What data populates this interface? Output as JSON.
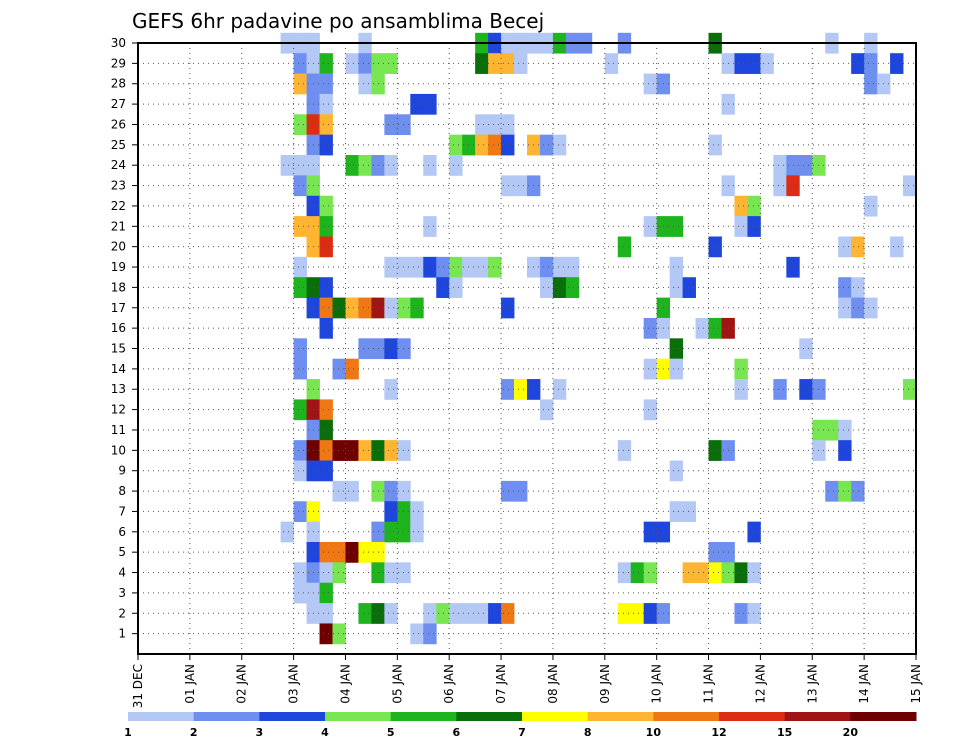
{
  "chart_data": {
    "type": "heatmap",
    "title": "GEFS 6hr padavine po ansamblima Becej",
    "x_tick_labels": [
      "31 DEC",
      "01 JAN",
      "02 JAN",
      "03 JAN",
      "04 JAN",
      "05 JAN",
      "06 JAN",
      "07 JAN",
      "08 JAN",
      "09 JAN",
      "10 JAN",
      "11 JAN",
      "12 JAN",
      "13 JAN",
      "14 JAN",
      "15 JAN"
    ],
    "y_tick_labels": [
      "1",
      "2",
      "3",
      "4",
      "5",
      "6",
      "7",
      "8",
      "9",
      "10",
      "11",
      "12",
      "13",
      "14",
      "15",
      "16",
      "17",
      "18",
      "19",
      "20",
      "21",
      "22",
      "23",
      "24",
      "25",
      "26",
      "27",
      "28",
      "29",
      "30"
    ],
    "xlim": [
      0,
      60
    ],
    "ylim": [
      0,
      30
    ],
    "grid": true,
    "colorbar": {
      "labels": [
        "1",
        "2",
        "3",
        "4",
        "5",
        "6",
        "7",
        "8",
        "10",
        "12",
        "15",
        "20"
      ],
      "colors": [
        "#b4c8f5",
        "#6e8ff0",
        "#1e46dc",
        "#78e650",
        "#1eb41e",
        "#0a6e0a",
        "#ffff00",
        "#ffb432",
        "#f07814",
        "#dc2d14",
        "#a01414",
        "#6e0000"
      ]
    },
    "cells": [
      [
        12,
        30,
        1
      ],
      [
        13,
        30,
        1
      ],
      [
        14,
        30,
        1
      ],
      [
        18,
        30,
        1
      ],
      [
        27,
        30,
        5
      ],
      [
        28,
        30,
        3
      ],
      [
        29,
        30,
        1
      ],
      [
        30,
        30,
        1
      ],
      [
        31,
        30,
        1
      ],
      [
        32,
        30,
        1
      ],
      [
        33,
        30,
        5
      ],
      [
        34,
        30,
        2
      ],
      [
        35,
        30,
        2
      ],
      [
        38,
        30,
        2
      ],
      [
        45,
        30,
        6
      ],
      [
        54,
        30,
        1
      ],
      [
        57,
        30,
        1
      ],
      [
        13,
        29,
        2
      ],
      [
        14,
        29,
        1
      ],
      [
        15,
        29,
        5
      ],
      [
        17,
        29,
        1
      ],
      [
        18,
        29,
        2
      ],
      [
        19,
        29,
        4
      ],
      [
        20,
        29,
        4
      ],
      [
        27,
        29,
        6
      ],
      [
        28,
        29,
        8
      ],
      [
        29,
        29,
        8
      ],
      [
        30,
        29,
        1
      ],
      [
        37,
        29,
        1
      ],
      [
        46,
        29,
        1
      ],
      [
        47,
        29,
        3
      ],
      [
        48,
        29,
        3
      ],
      [
        49,
        29,
        1
      ],
      [
        56,
        29,
        3
      ],
      [
        57,
        29,
        2
      ],
      [
        59,
        29,
        3
      ],
      [
        13,
        28,
        8
      ],
      [
        14,
        28,
        2
      ],
      [
        15,
        28,
        2
      ],
      [
        18,
        28,
        1
      ],
      [
        19,
        28,
        4
      ],
      [
        40,
        28,
        1
      ],
      [
        41,
        28,
        2
      ],
      [
        57,
        28,
        2
      ],
      [
        58,
        28,
        1
      ],
      [
        14,
        27,
        2
      ],
      [
        15,
        27,
        1
      ],
      [
        22,
        27,
        3
      ],
      [
        23,
        27,
        3
      ],
      [
        46,
        27,
        1
      ],
      [
        13,
        26,
        4
      ],
      [
        14,
        26,
        10
      ],
      [
        15,
        26,
        8
      ],
      [
        20,
        26,
        2
      ],
      [
        21,
        26,
        2
      ],
      [
        27,
        26,
        1
      ],
      [
        28,
        26,
        1
      ],
      [
        29,
        26,
        1
      ],
      [
        14,
        25,
        2
      ],
      [
        15,
        25,
        3
      ],
      [
        25,
        25,
        4
      ],
      [
        26,
        25,
        5
      ],
      [
        27,
        25,
        8
      ],
      [
        28,
        25,
        9
      ],
      [
        29,
        25,
        3
      ],
      [
        31,
        25,
        8
      ],
      [
        32,
        25,
        2
      ],
      [
        33,
        25,
        1
      ],
      [
        45,
        25,
        1
      ],
      [
        12,
        24,
        1
      ],
      [
        13,
        24,
        1
      ],
      [
        14,
        24,
        1
      ],
      [
        17,
        24,
        5
      ],
      [
        18,
        24,
        4
      ],
      [
        19,
        24,
        2
      ],
      [
        20,
        24,
        1
      ],
      [
        23,
        24,
        1
      ],
      [
        25,
        24,
        1
      ],
      [
        50,
        24,
        1
      ],
      [
        51,
        24,
        2
      ],
      [
        52,
        24,
        2
      ],
      [
        53,
        24,
        4
      ],
      [
        13,
        23,
        2
      ],
      [
        14,
        23,
        4
      ],
      [
        29,
        23,
        1
      ],
      [
        30,
        23,
        1
      ],
      [
        31,
        23,
        2
      ],
      [
        46,
        23,
        1
      ],
      [
        50,
        23,
        1
      ],
      [
        51,
        23,
        10
      ],
      [
        60,
        23,
        1
      ],
      [
        14,
        22,
        3
      ],
      [
        15,
        22,
        4
      ],
      [
        47,
        22,
        8
      ],
      [
        48,
        22,
        4
      ],
      [
        57,
        22,
        1
      ],
      [
        13,
        21,
        8
      ],
      [
        14,
        21,
        8
      ],
      [
        15,
        21,
        5
      ],
      [
        23,
        21,
        1
      ],
      [
        40,
        21,
        1
      ],
      [
        41,
        21,
        5
      ],
      [
        42,
        21,
        5
      ],
      [
        47,
        21,
        1
      ],
      [
        48,
        21,
        3
      ],
      [
        14,
        20,
        8
      ],
      [
        15,
        20,
        10
      ],
      [
        38,
        20,
        5
      ],
      [
        45,
        20,
        3
      ],
      [
        55,
        20,
        1
      ],
      [
        56,
        20,
        8
      ],
      [
        59,
        20,
        1
      ],
      [
        13,
        19,
        1
      ],
      [
        20,
        19,
        1
      ],
      [
        21,
        19,
        1
      ],
      [
        22,
        19,
        1
      ],
      [
        23,
        19,
        3
      ],
      [
        24,
        19,
        2
      ],
      [
        25,
        19,
        4
      ],
      [
        26,
        19,
        1
      ],
      [
        27,
        19,
        1
      ],
      [
        28,
        19,
        4
      ],
      [
        31,
        19,
        1
      ],
      [
        32,
        19,
        2
      ],
      [
        33,
        19,
        1
      ],
      [
        34,
        19,
        1
      ],
      [
        42,
        19,
        1
      ],
      [
        51,
        19,
        3
      ],
      [
        13,
        18,
        5
      ],
      [
        14,
        18,
        6
      ],
      [
        15,
        18,
        3
      ],
      [
        24,
        18,
        3
      ],
      [
        25,
        18,
        1
      ],
      [
        32,
        18,
        1
      ],
      [
        33,
        18,
        6
      ],
      [
        34,
        18,
        5
      ],
      [
        42,
        18,
        1
      ],
      [
        43,
        18,
        3
      ],
      [
        55,
        18,
        2
      ],
      [
        56,
        18,
        1
      ],
      [
        14,
        17,
        3
      ],
      [
        15,
        17,
        9
      ],
      [
        16,
        17,
        6
      ],
      [
        17,
        17,
        8
      ],
      [
        18,
        17,
        9
      ],
      [
        19,
        17,
        11
      ],
      [
        20,
        17,
        1
      ],
      [
        21,
        17,
        4
      ],
      [
        22,
        17,
        5
      ],
      [
        29,
        17,
        3
      ],
      [
        41,
        17,
        5
      ],
      [
        55,
        17,
        1
      ],
      [
        56,
        17,
        2
      ],
      [
        57,
        17,
        1
      ],
      [
        15,
        16,
        3
      ],
      [
        40,
        16,
        2
      ],
      [
        41,
        16,
        1
      ],
      [
        44,
        16,
        1
      ],
      [
        45,
        16,
        5
      ],
      [
        46,
        16,
        11
      ],
      [
        13,
        15,
        2
      ],
      [
        18,
        15,
        2
      ],
      [
        19,
        15,
        2
      ],
      [
        20,
        15,
        3
      ],
      [
        21,
        15,
        2
      ],
      [
        42,
        15,
        6
      ],
      [
        52,
        15,
        1
      ],
      [
        13,
        14,
        2
      ],
      [
        16,
        14,
        2
      ],
      [
        17,
        14,
        9
      ],
      [
        40,
        14,
        1
      ],
      [
        41,
        14,
        7
      ],
      [
        42,
        14,
        1
      ],
      [
        47,
        14,
        4
      ],
      [
        14,
        13,
        4
      ],
      [
        20,
        13,
        1
      ],
      [
        29,
        13,
        2
      ],
      [
        30,
        13,
        7
      ],
      [
        31,
        13,
        3
      ],
      [
        33,
        13,
        1
      ],
      [
        47,
        13,
        1
      ],
      [
        50,
        13,
        2
      ],
      [
        52,
        13,
        3
      ],
      [
        53,
        13,
        2
      ],
      [
        60,
        13,
        4
      ],
      [
        13,
        12,
        5
      ],
      [
        14,
        12,
        11
      ],
      [
        15,
        12,
        9
      ],
      [
        32,
        12,
        1
      ],
      [
        40,
        12,
        1
      ],
      [
        14,
        11,
        2
      ],
      [
        15,
        11,
        6
      ],
      [
        53,
        11,
        4
      ],
      [
        54,
        11,
        4
      ],
      [
        55,
        11,
        1
      ],
      [
        13,
        10,
        2
      ],
      [
        14,
        10,
        12
      ],
      [
        15,
        10,
        9
      ],
      [
        16,
        10,
        12
      ],
      [
        17,
        10,
        12
      ],
      [
        18,
        10,
        8
      ],
      [
        19,
        10,
        6
      ],
      [
        20,
        10,
        8
      ],
      [
        21,
        10,
        1
      ],
      [
        38,
        10,
        1
      ],
      [
        45,
        10,
        6
      ],
      [
        46,
        10,
        2
      ],
      [
        53,
        10,
        1
      ],
      [
        55,
        10,
        3
      ],
      [
        13,
        9,
        1
      ],
      [
        14,
        9,
        3
      ],
      [
        15,
        9,
        3
      ],
      [
        42,
        9,
        1
      ],
      [
        16,
        8,
        1
      ],
      [
        17,
        8,
        1
      ],
      [
        19,
        8,
        4
      ],
      [
        20,
        8,
        2
      ],
      [
        21,
        8,
        1
      ],
      [
        29,
        8,
        2
      ],
      [
        30,
        8,
        2
      ],
      [
        54,
        8,
        2
      ],
      [
        55,
        8,
        4
      ],
      [
        56,
        8,
        2
      ],
      [
        13,
        7,
        2
      ],
      [
        14,
        7,
        7
      ],
      [
        20,
        7,
        3
      ],
      [
        21,
        7,
        5
      ],
      [
        22,
        7,
        1
      ],
      [
        42,
        7,
        1
      ],
      [
        43,
        7,
        1
      ],
      [
        12,
        6,
        1
      ],
      [
        14,
        6,
        1
      ],
      [
        19,
        6,
        2
      ],
      [
        20,
        6,
        5
      ],
      [
        21,
        6,
        5
      ],
      [
        22,
        6,
        1
      ],
      [
        40,
        6,
        3
      ],
      [
        41,
        6,
        3
      ],
      [
        48,
        6,
        3
      ],
      [
        14,
        5,
        3
      ],
      [
        15,
        5,
        9
      ],
      [
        16,
        5,
        9
      ],
      [
        17,
        5,
        12
      ],
      [
        18,
        5,
        7
      ],
      [
        19,
        5,
        7
      ],
      [
        45,
        5,
        2
      ],
      [
        46,
        5,
        2
      ],
      [
        13,
        4,
        1
      ],
      [
        14,
        4,
        2
      ],
      [
        15,
        4,
        1
      ],
      [
        16,
        4,
        4
      ],
      [
        19,
        4,
        5
      ],
      [
        20,
        4,
        1
      ],
      [
        21,
        4,
        1
      ],
      [
        38,
        4,
        1
      ],
      [
        39,
        4,
        5
      ],
      [
        40,
        4,
        4
      ],
      [
        43,
        4,
        8
      ],
      [
        44,
        4,
        8
      ],
      [
        45,
        4,
        7
      ],
      [
        46,
        4,
        4
      ],
      [
        47,
        4,
        6
      ],
      [
        48,
        4,
        1
      ],
      [
        13,
        3,
        1
      ],
      [
        14,
        3,
        1
      ],
      [
        15,
        3,
        5
      ],
      [
        14,
        2,
        1
      ],
      [
        15,
        2,
        1
      ],
      [
        18,
        2,
        5
      ],
      [
        19,
        2,
        6
      ],
      [
        20,
        2,
        1
      ],
      [
        23,
        2,
        1
      ],
      [
        24,
        2,
        4
      ],
      [
        25,
        2,
        1
      ],
      [
        26,
        2,
        1
      ],
      [
        27,
        2,
        1
      ],
      [
        28,
        2,
        3
      ],
      [
        29,
        2,
        9
      ],
      [
        38,
        2,
        7
      ],
      [
        39,
        2,
        7
      ],
      [
        40,
        2,
        3
      ],
      [
        41,
        2,
        2
      ],
      [
        47,
        2,
        2
      ],
      [
        48,
        2,
        1
      ],
      [
        15,
        1,
        12
      ],
      [
        16,
        1,
        4
      ],
      [
        22,
        1,
        1
      ],
      [
        23,
        1,
        2
      ]
    ]
  }
}
